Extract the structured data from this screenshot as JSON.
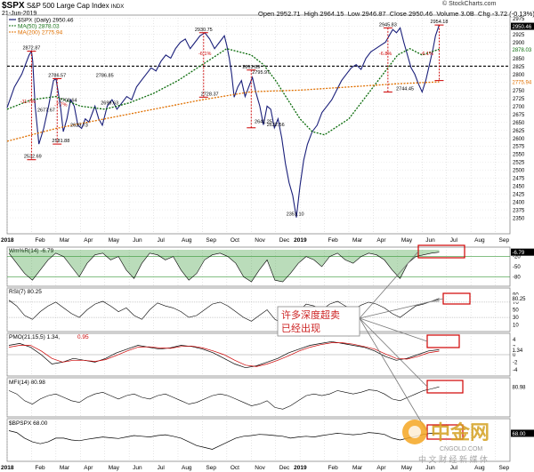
{
  "header": {
    "symbol": "$SPX",
    "name": "S&P 500 Large Cap Index",
    "exchange": "INDX",
    "date": "21-Jun-2019",
    "open_label": "Open",
    "open": "2952.71",
    "high_label": "High",
    "high": "2964.15",
    "low_label": "Low",
    "low": "2946.87",
    "close_label": "Close",
    "close": "2950.46",
    "volume_label": "Volume",
    "volume": "3.0B",
    "chg_label": "Chg",
    "chg": "-3.72 (-0.13%)",
    "copyright": "© StockCharts.com"
  },
  "legend": {
    "price": "$SPX (Daily) 2950.46",
    "ma50": "MA(50) 2878.03",
    "ma200": "MA(200) 2775.94"
  },
  "colors": {
    "price": "#1a1f7a",
    "ma50": "#0a6b0a",
    "ma200": "#e07000",
    "annotation": "#cc0000",
    "willr_fill": "#3a9a3a",
    "rsi_fill": "#999999",
    "pmo_signal": "#cc0000",
    "box": "#d00000"
  },
  "chart_data": [
    {
      "type": "line",
      "title": "$SPX S&P 500 Large Cap Index",
      "ylim": [
        2300,
        2985
      ],
      "yticks": [
        2350,
        2375,
        2400,
        2425,
        2450,
        2475,
        2500,
        2525,
        2550,
        2575,
        2600,
        2625,
        2650,
        2675,
        2700,
        2725,
        2750,
        2775,
        2800,
        2825,
        2850,
        2875,
        2900,
        2925,
        2950,
        2975
      ],
      "ytick_labels": [
        "2350",
        "2375",
        "2400",
        "2425",
        "2450",
        "2475",
        "2500",
        "2525",
        "2550",
        "2575",
        "2600",
        "2625",
        "2650",
        "2675",
        "2700",
        "2725",
        "2750",
        "2775",
        "2800",
        "2825",
        "2850",
        "2875",
        "2900",
        "2925",
        "2950",
        "2975"
      ],
      "price_label_current": "2950.46",
      "ma50_label_current": "2878.03",
      "ma200_label_current": "2775.94",
      "x_months": [
        "2018",
        "Feb",
        "Mar",
        "Apr",
        "May",
        "Jun",
        "Jul",
        "Aug",
        "Sep",
        "Oct",
        "Nov",
        "Dec",
        "2019",
        "Feb",
        "Mar",
        "Apr",
        "May",
        "Jun",
        "Jul",
        "Aug",
        "Sep"
      ],
      "series": [
        {
          "key": "price",
          "x": [
            0,
            0.3,
            0.6,
            0.9,
            1.0,
            1.05,
            1.15,
            1.3,
            1.5,
            1.7,
            1.9,
            2.0,
            2.1,
            2.2,
            2.3,
            2.45,
            2.6,
            2.75,
            2.9,
            3.05,
            3.2,
            3.35,
            3.5,
            3.6,
            3.75,
            3.9,
            4.1,
            4.3,
            4.5,
            4.7,
            4.9,
            5.1,
            5.3,
            5.5,
            5.7,
            5.9,
            6.1,
            6.3,
            6.5,
            6.7,
            6.9,
            7.1,
            7.3,
            7.5,
            7.7,
            7.9,
            8.1,
            8.3,
            8.5,
            8.7,
            8.9,
            9.0,
            9.1,
            9.2,
            9.3,
            9.45,
            9.6,
            9.75,
            9.9,
            10.05,
            10.2,
            10.35,
            10.5,
            10.65,
            10.8,
            10.95,
            11.1,
            11.25,
            11.4,
            11.55,
            11.7,
            11.85,
            12.0,
            12.15,
            12.3,
            12.5,
            12.7,
            12.9,
            13.1,
            13.3,
            13.5,
            13.7,
            13.9,
            14.1,
            14.3,
            14.5,
            14.7,
            14.9,
            15.1,
            15.3,
            15.5,
            15.65,
            15.8,
            15.95,
            16.1,
            16.25,
            16.4,
            16.55,
            16.7,
            16.85,
            17.0,
            17.15,
            17.3,
            17.45,
            17.55,
            17.7
          ],
          "values": [
            2695,
            2760,
            2800,
            2860,
            2872,
            2840,
            2700,
            2581,
            2630,
            2700,
            2780,
            2786,
            2740,
            2690,
            2620,
            2660,
            2720,
            2700,
            2640,
            2630,
            2660,
            2650,
            2680,
            2700,
            2660,
            2640,
            2700,
            2720,
            2690,
            2710,
            2730,
            2720,
            2760,
            2780,
            2800,
            2820,
            2810,
            2840,
            2860,
            2850,
            2880,
            2900,
            2910,
            2880,
            2900,
            2920,
            2930,
            2910,
            2880,
            2900,
            2920,
            2890,
            2850,
            2800,
            2728,
            2760,
            2780,
            2730,
            2760,
            2790,
            2740,
            2700,
            2641,
            2700,
            2690,
            2632,
            2660,
            2600,
            2520,
            2460,
            2420,
            2351,
            2450,
            2530,
            2580,
            2620,
            2640,
            2680,
            2700,
            2720,
            2750,
            2780,
            2800,
            2820,
            2830,
            2815,
            2850,
            2870,
            2880,
            2890,
            2900,
            2920,
            2940,
            2930,
            2945,
            2900,
            2860,
            2820,
            2800,
            2770,
            2744,
            2780,
            2830,
            2880,
            2920,
            2954
          ]
        },
        {
          "key": "ma50",
          "x": [
            0,
            1,
            2,
            3,
            4,
            5,
            6,
            7,
            8,
            9,
            10,
            10.5,
            11,
            11.5,
            12,
            12.5,
            13,
            14,
            15,
            16,
            16.5,
            17,
            17.7
          ],
          "values": [
            2690,
            2720,
            2730,
            2700,
            2690,
            2710,
            2740,
            2780,
            2830,
            2880,
            2860,
            2830,
            2780,
            2720,
            2660,
            2620,
            2610,
            2660,
            2760,
            2860,
            2880,
            2860,
            2878
          ]
        },
        {
          "key": "ma200",
          "x": [
            0,
            2,
            4,
            6,
            8,
            10,
            12,
            14,
            16,
            17.7
          ],
          "values": [
            2590,
            2630,
            2660,
            2690,
            2720,
            2745,
            2750,
            2760,
            2770,
            2776
          ]
        }
      ],
      "annotations": [
        {
          "text": "2872.87",
          "x": 1.0,
          "y": 2872
        },
        {
          "text": "2532.69",
          "x": 1.05,
          "y": 2532
        },
        {
          "text": "-11.7%",
          "x": 0.85,
          "y": 2710
        },
        {
          "text": "2786.57",
          "x": 2.05,
          "y": 2786
        },
        {
          "text": "2677.67",
          "x": 1.6,
          "y": 2678
        },
        {
          "text": "-7.7%",
          "x": 2.2,
          "y": 2700
        },
        {
          "text": "2581.88",
          "x": 2.2,
          "y": 2581
        },
        {
          "text": "2708.64",
          "x": 2.5,
          "y": 2708
        },
        {
          "text": "2629.73",
          "x": 2.95,
          "y": 2630
        },
        {
          "text": "2699.63",
          "x": 4.2,
          "y": 2700
        },
        {
          "text": "2786.85",
          "x": 4.0,
          "y": 2786
        },
        {
          "text": "2930.75",
          "x": 8.05,
          "y": 2930
        },
        {
          "text": "-6.1%",
          "x": 8.1,
          "y": 2860
        },
        {
          "text": "2728.37",
          "x": 8.3,
          "y": 2728
        },
        {
          "text": "2813.89",
          "x": 10.0,
          "y": 2813
        },
        {
          "text": "2795.97",
          "x": 10.4,
          "y": 2796
        },
        {
          "text": "2641.25",
          "x": 10.5,
          "y": 2641
        },
        {
          "text": "2632.56",
          "x": 11.0,
          "y": 2632
        },
        {
          "text": "2351.10",
          "x": 11.8,
          "y": 2351
        },
        {
          "text": "2945.83",
          "x": 15.6,
          "y": 2945
        },
        {
          "text": "-6.8%",
          "x": 15.5,
          "y": 2860
        },
        {
          "text": "2744.45",
          "x": 16.3,
          "y": 2744
        },
        {
          "text": "2954.18",
          "x": 17.7,
          "y": 2954
        },
        {
          "text": "-6.1%",
          "x": 17.2,
          "y": 2860
        }
      ],
      "support_line": 2825
    },
    {
      "type": "area",
      "key": "willr",
      "legend": "Wm%R(14) -6.79",
      "current_label": "-6.79",
      "yticks": [
        -20,
        -50,
        -80
      ],
      "ytick_labels": [
        "-20",
        "-50",
        "-80"
      ],
      "ylim": [
        -100,
        0
      ],
      "levels": [
        -20,
        -80
      ],
      "values": [
        -10,
        -40,
        -70,
        -90,
        -60,
        -30,
        -10,
        -20,
        -50,
        -80,
        -40,
        -15,
        -10,
        -30,
        -20,
        -60,
        -85,
        -40,
        -10,
        -15,
        -30,
        -20,
        -60,
        -90,
        -70,
        -30,
        -15,
        -10,
        -20,
        -40,
        -80,
        -95,
        -60,
        -30,
        -90,
        -95,
        -70,
        -40,
        -20,
        -30,
        -50,
        -20,
        -10,
        -30,
        -40,
        -20,
        -10,
        -15,
        -30,
        -60,
        -85,
        -40,
        -20,
        -15,
        -10,
        -7
      ]
    },
    {
      "type": "area",
      "key": "rsi",
      "legend": "RSI(7) 80.25",
      "current_label": "80.25",
      "yticks": [
        90,
        70,
        50,
        30,
        10
      ],
      "ytick_labels": [
        "90",
        "70",
        "50",
        "30",
        "10"
      ],
      "ylim": [
        0,
        100
      ],
      "levels": [
        70,
        30
      ],
      "values": [
        75,
        60,
        35,
        25,
        45,
        60,
        70,
        55,
        40,
        30,
        50,
        65,
        72,
        60,
        45,
        55,
        35,
        25,
        50,
        68,
        60,
        55,
        45,
        30,
        35,
        50,
        65,
        70,
        60,
        45,
        30,
        20,
        35,
        50,
        25,
        15,
        30,
        45,
        65,
        60,
        50,
        65,
        72,
        60,
        50,
        62,
        70,
        65,
        55,
        40,
        30,
        45,
        60,
        65,
        72,
        80
      ]
    },
    {
      "type": "line",
      "key": "pmo",
      "legend": "PMO(21,15,5) 1.34,",
      "legend_signal": "0.95",
      "current_label": "1.34",
      "yticks": [
        4,
        2,
        0,
        -2,
        -4
      ],
      "ytick_labels": [
        "4",
        "2",
        "0",
        "-2",
        "-4"
      ],
      "ylim": [
        -5,
        5
      ],
      "series": [
        {
          "key": "pmo",
          "values": [
            2.5,
            3,
            2,
            0,
            -2.5,
            -2,
            -1,
            -1.5,
            -2,
            -1,
            0.5,
            1.5,
            2.5,
            2,
            1.5,
            1.8,
            2.5,
            2.2,
            1.5,
            0.5,
            -1,
            -2.5,
            -3.5,
            -3,
            -2,
            -1,
            0.5,
            1.5,
            2.5,
            3,
            3.5,
            3,
            2.5,
            2,
            1,
            -0.5,
            -1.5,
            -1,
            0,
            1,
            1.34
          ]
        },
        {
          "key": "signal",
          "values": [
            2,
            2.5,
            2.5,
            1,
            -1,
            -2,
            -1.5,
            -1.5,
            -1.8,
            -1.3,
            -0.2,
            1,
            2,
            2.1,
            1.8,
            1.7,
            2.2,
            2.3,
            1.8,
            1,
            0,
            -1.5,
            -2.8,
            -3.2,
            -2.5,
            -1.5,
            -0.3,
            1,
            2,
            2.7,
            3.2,
            3.2,
            2.8,
            2.2,
            1.5,
            0.2,
            -1,
            -1.2,
            -0.5,
            0.5,
            0.95
          ]
        }
      ]
    },
    {
      "type": "line",
      "key": "mfi",
      "legend": "MFI(14) 80.98",
      "current_label": "80.98",
      "values": [
        70,
        60,
        40,
        30,
        45,
        55,
        60,
        50,
        40,
        35,
        50,
        60,
        65,
        55,
        45,
        55,
        60,
        50,
        45,
        55,
        60,
        50,
        40,
        30,
        35,
        45,
        55,
        60,
        55,
        45,
        35,
        25,
        30,
        40,
        20,
        15,
        25,
        40,
        55,
        60,
        55,
        60,
        70,
        65,
        60,
        65,
        72,
        70,
        60,
        45,
        40,
        50,
        60,
        70,
        75,
        81
      ],
      "ylim": [
        0,
        100
      ]
    },
    {
      "type": "line",
      "key": "bpspx",
      "legend": "$BPSPX 68.00",
      "current_label": "68.00",
      "values": [
        75,
        70,
        55,
        45,
        40,
        45,
        55,
        55,
        50,
        48,
        52,
        55,
        58,
        56,
        54,
        58,
        62,
        60,
        58,
        62,
        64,
        60,
        55,
        45,
        35,
        30,
        25,
        35,
        45,
        55,
        60,
        62,
        65,
        64,
        62,
        60,
        55,
        58,
        60,
        58,
        62,
        65,
        68,
        66,
        64,
        66,
        70,
        68,
        65,
        55,
        50,
        55,
        60,
        65,
        68,
        68
      ],
      "ylim": [
        0,
        100
      ]
    }
  ],
  "callout": {
    "line1": "许多深度超卖",
    "line2": "已经出现"
  },
  "watermark": {
    "big": "中金网",
    "url": "CNGOLD.COM",
    "sub": "中 文 财 经 新 媒 体"
  }
}
